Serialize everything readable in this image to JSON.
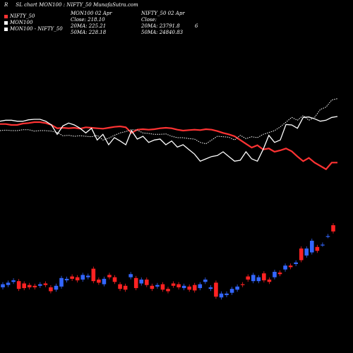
{
  "header": {
    "title_prefix": "R",
    "title": "SL chart MON100 : NIFTY_50",
    "site": "MunafaSutra.com",
    "ratio_value": "6"
  },
  "legend": [
    {
      "label": "NIFTY_50",
      "color": "#ff3333"
    },
    {
      "label": "MON100",
      "color": "#ffffff"
    },
    {
      "label": "MON100 - NIFTY_50",
      "color": "#ffffff"
    }
  ],
  "mon100_info": {
    "date": "MON100  02 Apr",
    "close": "Close: 218.10",
    "ma20": "20MA: 225.21",
    "ma50": "50MA: 228.18"
  },
  "nifty_info": {
    "date": "NIFTY_50  02 Apr",
    "close": "Close:",
    "ma20": "20MA: 23791.8",
    "ma50": "50MA: 24840.83"
  },
  "colors": {
    "background": "#000000",
    "nifty_line": "#ff3333",
    "mon_line": "#ffffff",
    "ratio_line": "#ffffff",
    "up_candle": "#3366ff",
    "down_candle": "#ff2222"
  },
  "chart_data": {
    "type": "line",
    "index": [
      1,
      2,
      3,
      4,
      5,
      6,
      7,
      8,
      9,
      10,
      11,
      12,
      13,
      14,
      15,
      16,
      17,
      18,
      19,
      20,
      21,
      22,
      23,
      24,
      25,
      26,
      27,
      28,
      29,
      30,
      31,
      32,
      33,
      34,
      35,
      36,
      37,
      38,
      39,
      40,
      41,
      42,
      43,
      44,
      45,
      46,
      47,
      48,
      49,
      50,
      51,
      52,
      53,
      54,
      55,
      56,
      57,
      58,
      59,
      60
    ],
    "series": [
      {
        "name": "NIFTY_50",
        "values": [
          64,
          64,
          62,
          62,
          65,
          66,
          68,
          68,
          66,
          62,
          55,
          56,
          55,
          56,
          54,
          57,
          56,
          55,
          54,
          56,
          58,
          59,
          57,
          45,
          52,
          53,
          52,
          53,
          55,
          56,
          55,
          52,
          50,
          51,
          52,
          51,
          53,
          52,
          49,
          45,
          42,
          38,
          30,
          22,
          14,
          19,
          10,
          12,
          5,
          8,
          12,
          6,
          -5,
          -15,
          -8,
          -18,
          -25,
          -32,
          -18,
          -18
        ]
      },
      {
        "name": "MON100",
        "values": [
          70,
          72,
          72,
          70,
          70,
          73,
          74,
          74,
          70,
          62,
          42,
          60,
          66,
          62,
          55,
          45,
          55,
          30,
          42,
          20,
          35,
          28,
          20,
          50,
          32,
          38,
          25,
          30,
          32,
          20,
          28,
          15,
          20,
          10,
          0,
          -15,
          -10,
          -5,
          -3,
          5,
          -5,
          -15,
          -13,
          5,
          -10,
          -15,
          10,
          40,
          25,
          30,
          63,
          62,
          55,
          78,
          79,
          75,
          70,
          72,
          78,
          80
        ]
      },
      {
        "name": "MON100 - NIFTY_50",
        "values": [
          50,
          51,
          50,
          50,
          52,
          52,
          49,
          50,
          50,
          49,
          46,
          39,
          40,
          38,
          39,
          38,
          37,
          40,
          30,
          34,
          40,
          45,
          48,
          52,
          51,
          45,
          44,
          42,
          42,
          43,
          38,
          35,
          35,
          33,
          32,
          25,
          22,
          30,
          38,
          37,
          36,
          30,
          40,
          33,
          37,
          35,
          42,
          46,
          50,
          58,
          68,
          78,
          72,
          82,
          72,
          78,
          95,
          100,
          115,
          118
        ]
      }
    ],
    "candles": [
      {
        "o": 0,
        "c": 4
      },
      {
        "o": 3,
        "c": 6
      },
      {
        "o": 7,
        "c": 9
      },
      {
        "o": 8,
        "c": -2
      },
      {
        "o": 5,
        "c": -1
      },
      {
        "o": 3,
        "c": 0
      },
      {
        "o": 2,
        "c": 0
      },
      {
        "o": 2,
        "c": 4
      },
      {
        "o": 5,
        "c": 3
      },
      {
        "o": 0,
        "c": -5
      },
      {
        "o": -3,
        "c": 2
      },
      {
        "o": 1,
        "c": 12
      },
      {
        "o": 9,
        "c": 11
      },
      {
        "o": 14,
        "c": 11
      },
      {
        "o": 13,
        "c": 9
      },
      {
        "o": 10,
        "c": 16
      },
      {
        "o": 13,
        "c": 15
      },
      {
        "o": 24,
        "c": 8
      },
      {
        "o": 10,
        "c": 6
      },
      {
        "o": 4,
        "c": 11
      },
      {
        "o": 16,
        "c": 13
      },
      {
        "o": 13,
        "c": 7
      },
      {
        "o": 4,
        "c": -2
      },
      {
        "o": 2,
        "c": -3
      },
      {
        "o": 13,
        "c": 17
      },
      {
        "o": 12,
        "c": -1
      },
      {
        "o": 5,
        "c": 10
      },
      {
        "o": 10,
        "c": 3
      },
      {
        "o": 2,
        "c": -2
      },
      {
        "o": 1,
        "c": 3
      },
      {
        "o": 4,
        "c": -3
      },
      {
        "o": -2,
        "c": -5
      },
      {
        "o": 5,
        "c": 2
      },
      {
        "o": 4,
        "c": 0
      },
      {
        "o": -1,
        "c": 2
      },
      {
        "o": 1,
        "c": -3
      },
      {
        "o": 3,
        "c": -4
      },
      {
        "o": -1,
        "c": 4
      },
      {
        "o": 7,
        "c": 10
      },
      {
        "o": -2,
        "c": 0
      },
      {
        "o": 6,
        "c": -12
      },
      {
        "o": -13,
        "c": -8
      },
      {
        "o": -10,
        "c": -8
      },
      {
        "o": -7,
        "c": -2
      },
      {
        "o": -3,
        "c": 1
      },
      {
        "o": 4,
        "c": 3
      },
      {
        "o": 14,
        "c": 10
      },
      {
        "o": 8,
        "c": 16
      },
      {
        "o": 8,
        "c": 13
      },
      {
        "o": 18,
        "c": 9
      },
      {
        "o": 10,
        "c": 7
      },
      {
        "o": 13,
        "c": 20
      },
      {
        "o": 19,
        "c": 17
      },
      {
        "o": 23,
        "c": 28
      },
      {
        "o": 28,
        "c": 26
      },
      {
        "o": 30,
        "c": 32
      },
      {
        "o": 50,
        "c": 35
      },
      {
        "o": 41,
        "c": 50
      },
      {
        "o": 45,
        "c": 60
      },
      {
        "o": 52,
        "c": 47
      },
      {
        "o": 55,
        "c": 55
      },
      {
        "o": 66,
        "c": 66
      },
      {
        "o": 80,
        "c": 72
      }
    ]
  }
}
